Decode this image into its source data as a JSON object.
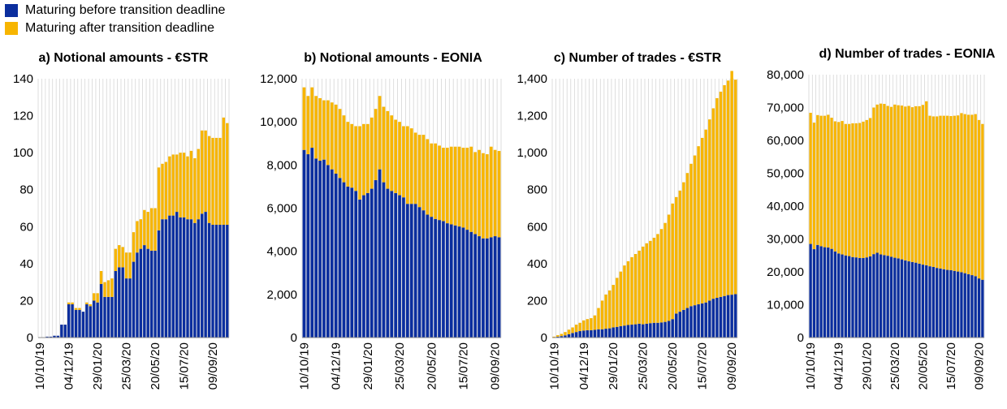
{
  "legend": {
    "items": [
      {
        "label": "Maturing before transition deadline",
        "color": "#0B2E9E"
      },
      {
        "label": "Maturing after transition deadline",
        "color": "#F7B500"
      }
    ]
  },
  "colors": {
    "before": "#0B2E9E",
    "after": "#F7B500",
    "grid": "#D6D6D6",
    "axis": "#8C8C8C"
  },
  "chart_data": [
    {
      "type": "bar",
      "stacked": true,
      "title": "a) Notional amounts - €STR",
      "ylim": [
        0,
        140
      ],
      "yticks": [
        0,
        20,
        40,
        60,
        80,
        100,
        120,
        140
      ],
      "ytick_labels": [
        "0",
        "20",
        "40",
        "60",
        "80",
        "100",
        "120",
        "140"
      ],
      "xtick_labels": [
        "10/10/19",
        "04/12/19",
        "29/01/20",
        "25/03/20",
        "20/05/20",
        "15/07/20",
        "09/09/20"
      ],
      "xtick_every": 8,
      "grid": true,
      "series": [
        {
          "name": "Maturing before transition deadline",
          "values": [
            0,
            0,
            0.5,
            0.5,
            1,
            1,
            7,
            7,
            18,
            18,
            15,
            15,
            14,
            18,
            17,
            20,
            19,
            29,
            22,
            22,
            22,
            36,
            38,
            38,
            32,
            32,
            41,
            46,
            48,
            50,
            48,
            47,
            47,
            58,
            64,
            64,
            66,
            66,
            68,
            65,
            65,
            64,
            64,
            62,
            64,
            67,
            68,
            62,
            61,
            61,
            61,
            61,
            61
          ]
        },
        {
          "name": "Maturing after transition deadline",
          "values": [
            0,
            0,
            0,
            0,
            0,
            0,
            0,
            0,
            1,
            1,
            1,
            1,
            0,
            1,
            1,
            4,
            5,
            7,
            8,
            9,
            10,
            12,
            12,
            11,
            14,
            14,
            16,
            17,
            16,
            19,
            20,
            23,
            23,
            34,
            30,
            31,
            32,
            33,
            31,
            35,
            35,
            34,
            37,
            35,
            38,
            45,
            44,
            47,
            47,
            47,
            47,
            58,
            55
          ]
        }
      ]
    },
    {
      "type": "bar",
      "stacked": true,
      "title": "b) Notional amounts - EONIA",
      "ylim": [
        0,
        12000
      ],
      "yticks": [
        0,
        2000,
        4000,
        6000,
        8000,
        10000,
        12000
      ],
      "ytick_labels": [
        "0",
        "2,000",
        "4,000",
        "6,000",
        "8,000",
        "10,000",
        "12,000"
      ],
      "xtick_labels": [
        "10/10/19",
        "04/12/19",
        "29/01/20",
        "25/03/20",
        "20/05/20",
        "15/07/20",
        "09/09/20"
      ],
      "xtick_every": 8,
      "grid": true,
      "series": [
        {
          "name": "Maturing before transition deadline",
          "values": [
            8700,
            8500,
            8800,
            8300,
            8200,
            8250,
            8000,
            7800,
            7600,
            7400,
            7200,
            7000,
            6950,
            6800,
            6400,
            6600,
            6700,
            6900,
            7300,
            7800,
            7200,
            6900,
            6800,
            6700,
            6600,
            6500,
            6200,
            6200,
            6200,
            6050,
            5900,
            5700,
            5600,
            5500,
            5450,
            5400,
            5300,
            5250,
            5200,
            5150,
            5100,
            5000,
            4900,
            4800,
            4700,
            4600,
            4600,
            4650,
            4700,
            4650
          ]
        },
        {
          "name": "Maturing after transition deadline",
          "values": [
            2900,
            2700,
            2800,
            2900,
            2900,
            2750,
            3000,
            3100,
            3200,
            3200,
            3100,
            3000,
            2950,
            3000,
            3400,
            3300,
            3200,
            3300,
            3300,
            3400,
            3500,
            3600,
            3500,
            3400,
            3400,
            3300,
            3600,
            3500,
            3300,
            3350,
            3500,
            3500,
            3400,
            3500,
            3450,
            3400,
            3500,
            3600,
            3650,
            3700,
            3700,
            3800,
            3950,
            3800,
            4000,
            3950,
            3900,
            4200,
            4000,
            4000
          ]
        }
      ]
    },
    {
      "type": "bar",
      "stacked": true,
      "title": "c) Number of trades - €STR",
      "ylim": [
        0,
        1400
      ],
      "yticks": [
        0,
        200,
        400,
        600,
        800,
        1000,
        1200,
        1400
      ],
      "ytick_labels": [
        "0",
        "200",
        "400",
        "600",
        "800",
        "1,000",
        "1,200",
        "1,400"
      ],
      "xtick_labels": [
        "10/10/19",
        "04/12/19",
        "29/01/20",
        "25/03/20",
        "20/05/20",
        "15/07/20",
        "09/09/20"
      ],
      "xtick_every": 8,
      "grid": true,
      "series": [
        {
          "name": "Maturing before transition deadline",
          "values": [
            2,
            5,
            8,
            12,
            18,
            25,
            30,
            35,
            38,
            40,
            40,
            42,
            45,
            45,
            48,
            50,
            55,
            58,
            62,
            65,
            68,
            70,
            72,
            75,
            72,
            75,
            78,
            80,
            80,
            82,
            85,
            90,
            100,
            130,
            140,
            150,
            160,
            170,
            175,
            180,
            185,
            190,
            200,
            210,
            215,
            220,
            225,
            230,
            232,
            235
          ]
        },
        {
          "name": "Maturing after transition deadline",
          "values": [
            3,
            8,
            12,
            18,
            25,
            30,
            40,
            45,
            55,
            60,
            65,
            78,
            115,
            155,
            185,
            205,
            230,
            265,
            295,
            325,
            345,
            365,
            380,
            395,
            420,
            435,
            445,
            460,
            480,
            505,
            535,
            575,
            625,
            630,
            655,
            690,
            730,
            770,
            810,
            855,
            895,
            935,
            980,
            1030,
            1080,
            1110,
            1140,
            1160,
            1210,
            1160
          ]
        }
      ]
    },
    {
      "type": "bar",
      "stacked": true,
      "title": "d) Number of trades - EONIA",
      "ylim": [
        0,
        80000
      ],
      "yticks": [
        0,
        10000,
        20000,
        30000,
        40000,
        50000,
        60000,
        70000,
        80000
      ],
      "ytick_labels": [
        "0",
        "10,000",
        "20,000",
        "30,000",
        "40,000",
        "50,000",
        "60,000",
        "70,000",
        "80,000"
      ],
      "xtick_labels": [
        "10/10/19",
        "04/12/19",
        "29/01/20",
        "25/03/20",
        "20/05/20",
        "15/07/20",
        "09/09/20"
      ],
      "xtick_every": 8,
      "grid": true,
      "series": [
        {
          "name": "Maturing before transition deadline",
          "values": [
            28500,
            26900,
            28200,
            27800,
            27500,
            27400,
            27000,
            26200,
            25600,
            25300,
            25000,
            24800,
            24500,
            24400,
            24200,
            24200,
            24400,
            24700,
            25400,
            25800,
            25300,
            25100,
            24900,
            24600,
            24300,
            24100,
            23800,
            23500,
            23200,
            23000,
            22800,
            22500,
            22200,
            22000,
            21700,
            21500,
            21200,
            21000,
            20800,
            20600,
            20500,
            20300,
            20100,
            19900,
            19600,
            19300,
            19000,
            18700,
            18000,
            17600
          ]
        },
        {
          "name": "Maturing after transition deadline",
          "values": [
            39900,
            38500,
            39500,
            39700,
            40000,
            40400,
            39900,
            39600,
            40000,
            40600,
            40000,
            40200,
            40700,
            40800,
            41100,
            41500,
            41800,
            42100,
            44600,
            45100,
            45900,
            46000,
            45600,
            45600,
            46600,
            46600,
            46800,
            46800,
            47300,
            47100,
            47600,
            47900,
            48600,
            49900,
            45800,
            45800,
            46100,
            46500,
            46700,
            46900,
            46900,
            47200,
            47500,
            48400,
            48400,
            48500,
            48800,
            49300,
            48200,
            47400
          ]
        }
      ]
    }
  ]
}
